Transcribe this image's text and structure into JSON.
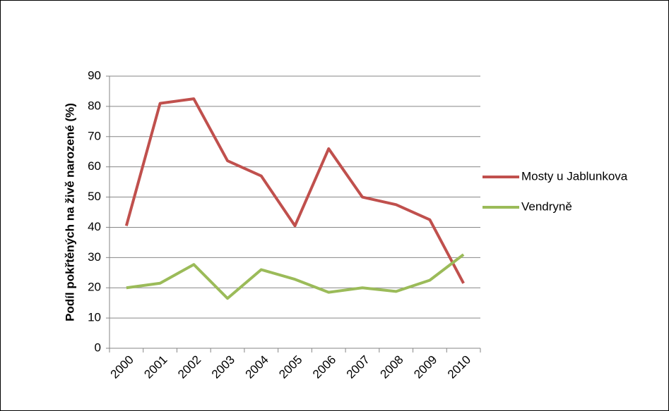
{
  "chart_data": {
    "type": "line",
    "y_label": "Podíl pokřtěných na živě narozené (%)",
    "categories": [
      "2000",
      "2001",
      "2002",
      "2003",
      "2004",
      "2005",
      "2006",
      "2007",
      "2008",
      "2009",
      "2010"
    ],
    "series": [
      {
        "name": "Mosty u Jablunkova",
        "color": "#c0504d",
        "values": [
          40.5,
          81,
          82.5,
          62,
          57,
          40.5,
          66,
          50,
          47.5,
          42.5,
          21.5
        ]
      },
      {
        "name": "Vendryně",
        "color": "#9bbb59",
        "values": [
          20,
          21.5,
          27.7,
          16.5,
          26,
          22.8,
          18.5,
          20,
          18.8,
          22.5,
          31
        ]
      }
    ],
    "ylim": [
      0,
      90
    ],
    "yticks": [
      0,
      10,
      20,
      30,
      40,
      50,
      60,
      70,
      80,
      90
    ],
    "grid": true,
    "legend": "right"
  }
}
